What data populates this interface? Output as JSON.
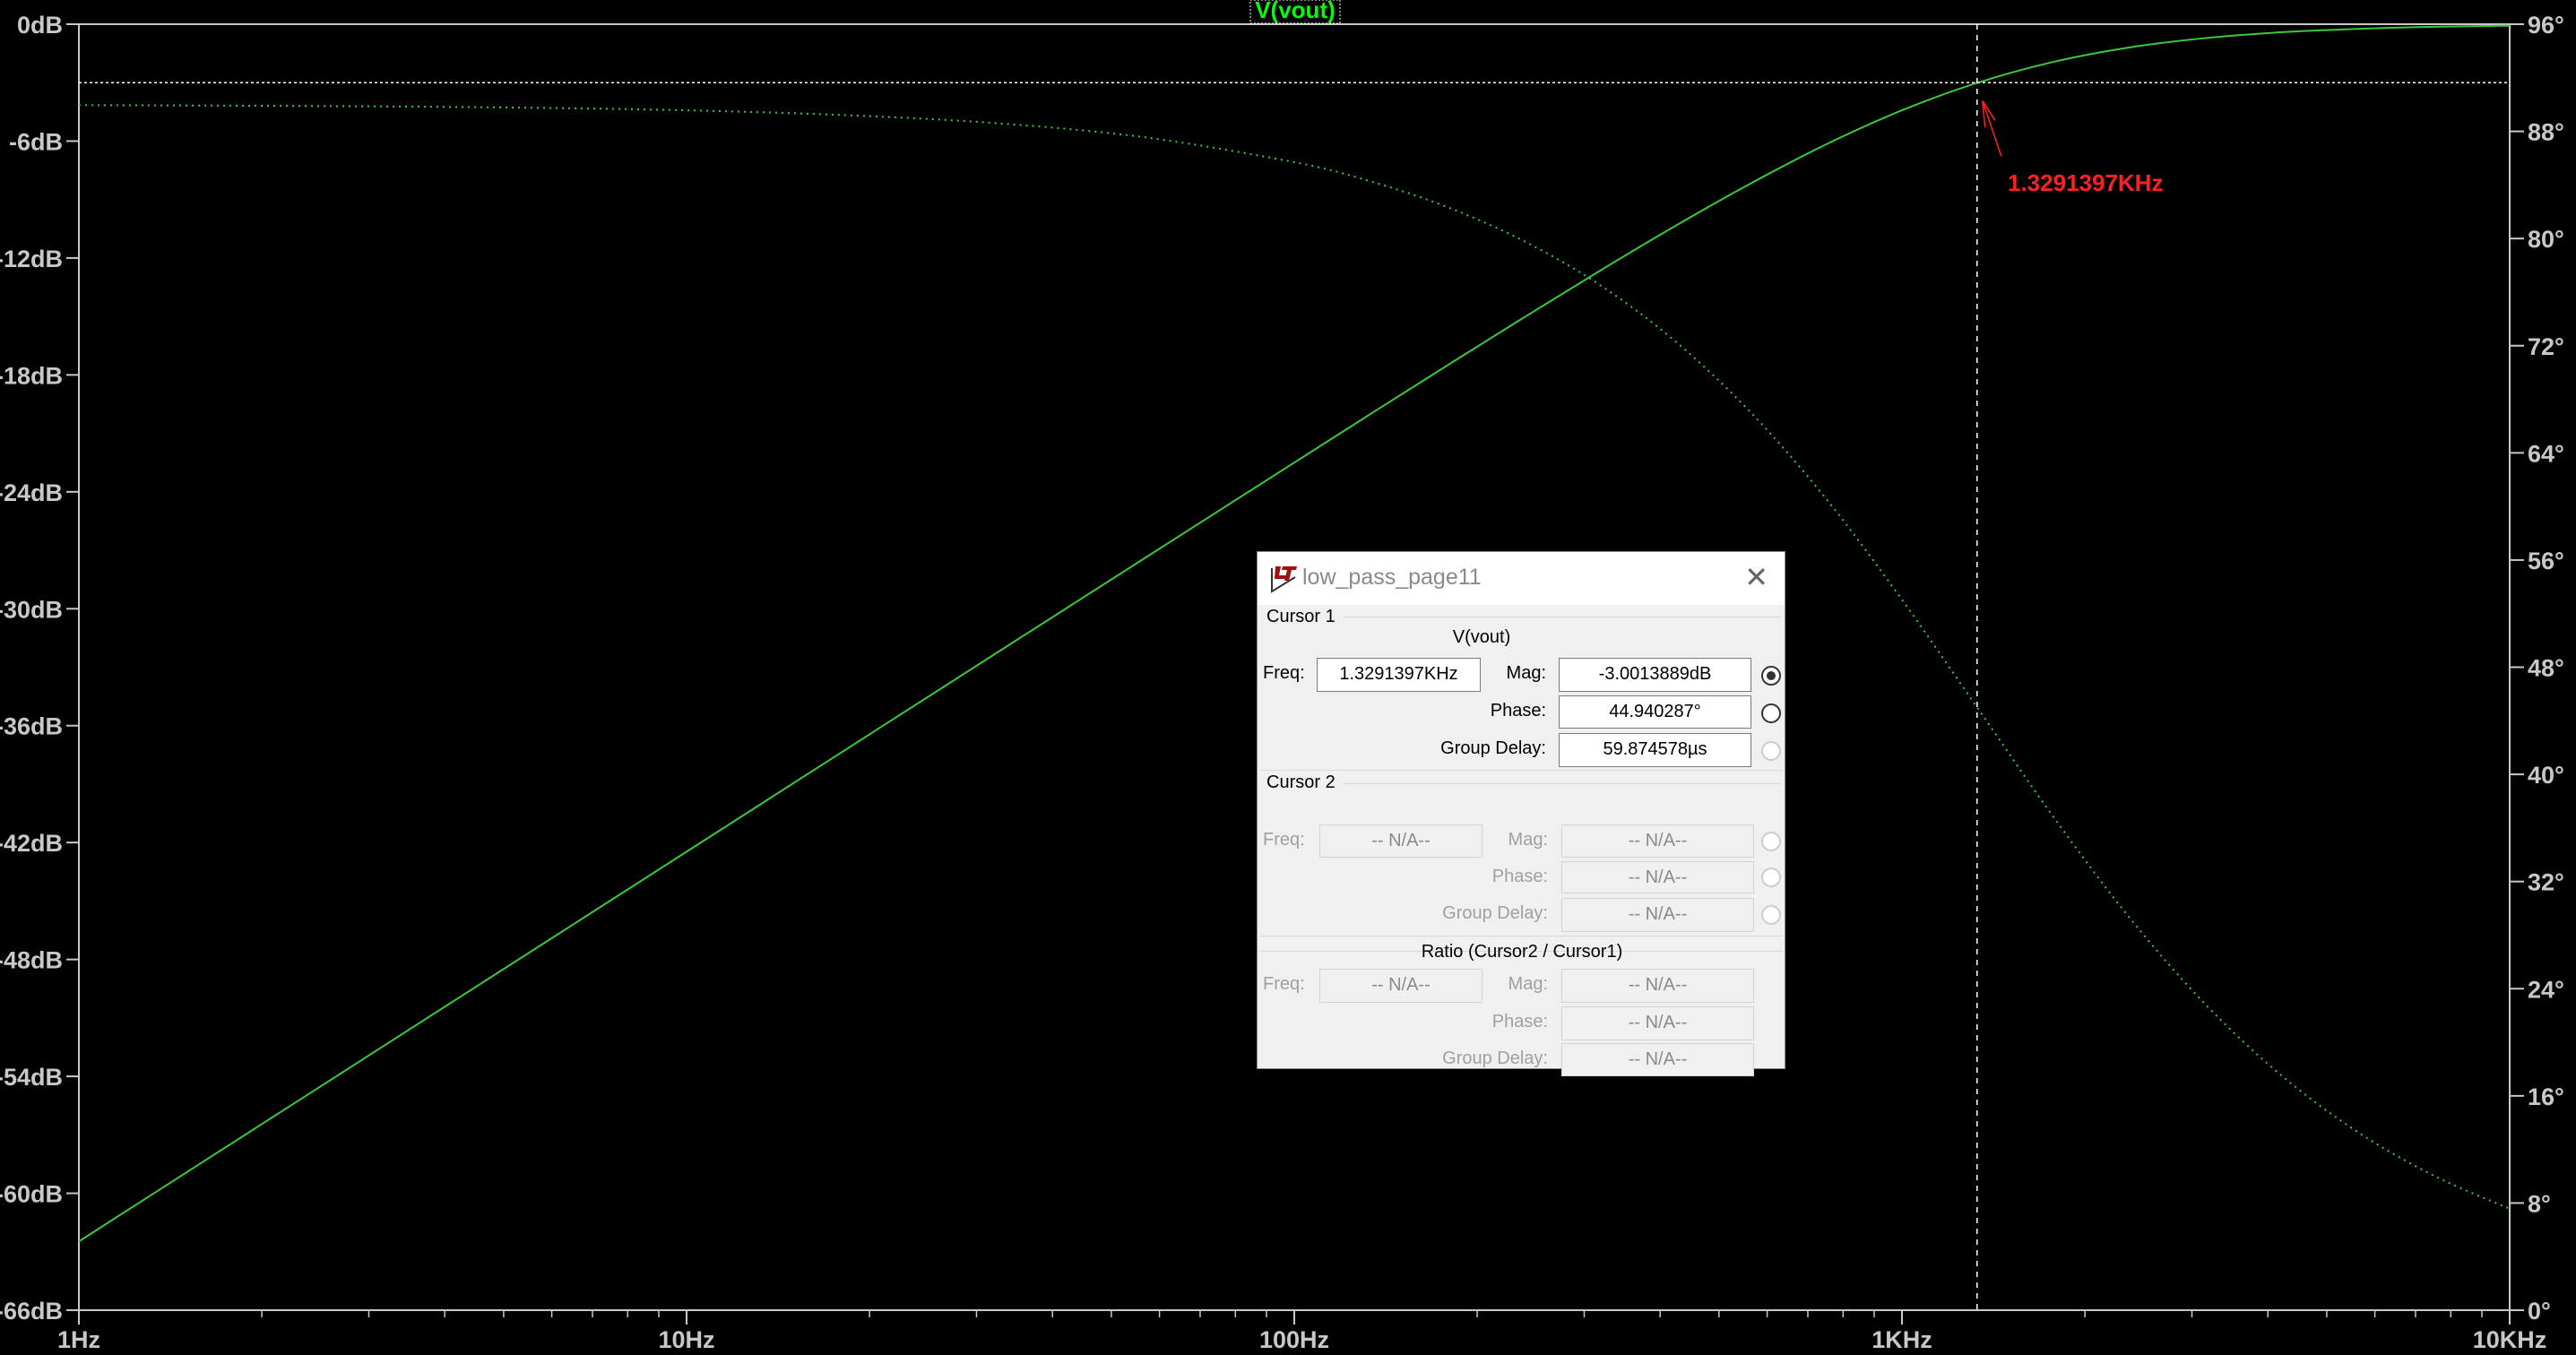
{
  "trace_label": "V(vout)",
  "cursor_marker_label": "1.3291397KHz",
  "colors": {
    "background": "#000000",
    "trace": "#3cc83c",
    "axis": "#c8c8c8",
    "cursor_label": "#ff2020",
    "trace_label": "#00ff00"
  },
  "chart_data": {
    "type": "line",
    "x_scale": "log",
    "xlim": [
      1,
      10000
    ],
    "x_ticks": [
      "1Hz",
      "10Hz",
      "100Hz",
      "1KHz",
      "10KHz"
    ],
    "left_axis": {
      "ylim": [
        -66,
        0
      ],
      "ticks": [
        "0dB",
        "-6dB",
        "-12dB",
        "-18dB",
        "-24dB",
        "-30dB",
        "-36dB",
        "-42dB",
        "-48dB",
        "-54dB",
        "-60dB",
        "-66dB"
      ]
    },
    "right_axis": {
      "ylim": [
        0,
        96
      ],
      "ticks": [
        "96°",
        "88°",
        "80°",
        "72°",
        "64°",
        "56°",
        "48°",
        "40°",
        "32°",
        "24°",
        "16°",
        "8°",
        "0°"
      ]
    },
    "grid": false,
    "x": [
      1,
      1.778,
      3.162,
      5.623,
      10,
      17.78,
      31.62,
      56.23,
      100,
      133.4,
      177.8,
      237.1,
      316.2,
      421.7,
      562.3,
      749.9,
      1000,
      1333.5,
      1778,
      2371,
      3162,
      4217,
      5623,
      7499,
      10000
    ],
    "series": [
      {
        "name": "V(vout)",
        "quantity": "magnitude",
        "axis": "left",
        "style": "solid",
        "values": [
          -62.47,
          -57.47,
          -52.47,
          -47.47,
          -42.47,
          -37.47,
          -32.47,
          -27.48,
          -22.5,
          -20.01,
          -17.55,
          -15.11,
          -12.71,
          -10.39,
          -8.19,
          -6.17,
          -4.42,
          -3.0,
          -1.93,
          -1.19,
          -0.71,
          -0.41,
          -0.24,
          -0.13,
          -0.08
        ]
      },
      {
        "name": "V(vout)",
        "quantity": "phase",
        "axis": "right",
        "style": "dotted",
        "values": [
          89.96,
          89.92,
          89.86,
          89.76,
          89.57,
          89.23,
          88.64,
          87.58,
          85.7,
          84.27,
          82.38,
          79.88,
          76.62,
          72.4,
          67.07,
          60.58,
          53.04,
          44.91,
          36.78,
          29.27,
          22.8,
          17.5,
          13.3,
          10.05,
          7.57
        ]
      }
    ],
    "cursor": {
      "freq_hz": 1329.1397,
      "mag_db": -3.0013889
    }
  },
  "dialog": {
    "title": "low_pass_page11",
    "cursor1": {
      "heading": "Cursor 1",
      "trace": "V(vout)",
      "freq_label": "Freq:",
      "freq": "1.3291397KHz",
      "mag_label": "Mag:",
      "mag": "-3.0013889dB",
      "phase_label": "Phase:",
      "phase": "44.940287°",
      "gd_label": "Group Delay:",
      "gd": "59.874578µs"
    },
    "cursor2": {
      "heading": "Cursor 2",
      "freq_label": "Freq:",
      "freq": "-- N/A--",
      "mag_label": "Mag:",
      "mag": "-- N/A--",
      "phase_label": "Phase:",
      "phase": "-- N/A--",
      "gd_label": "Group Delay:",
      "gd": "-- N/A--"
    },
    "ratio": {
      "heading": "Ratio (Cursor2 / Cursor1)",
      "freq_label": "Freq:",
      "freq": "-- N/A--",
      "mag_label": "Mag:",
      "mag": "-- N/A--",
      "phase_label": "Phase:",
      "phase": "-- N/A--",
      "gd_label": "Group Delay:",
      "gd": "-- N/A--"
    },
    "selected_radio": "mag"
  }
}
